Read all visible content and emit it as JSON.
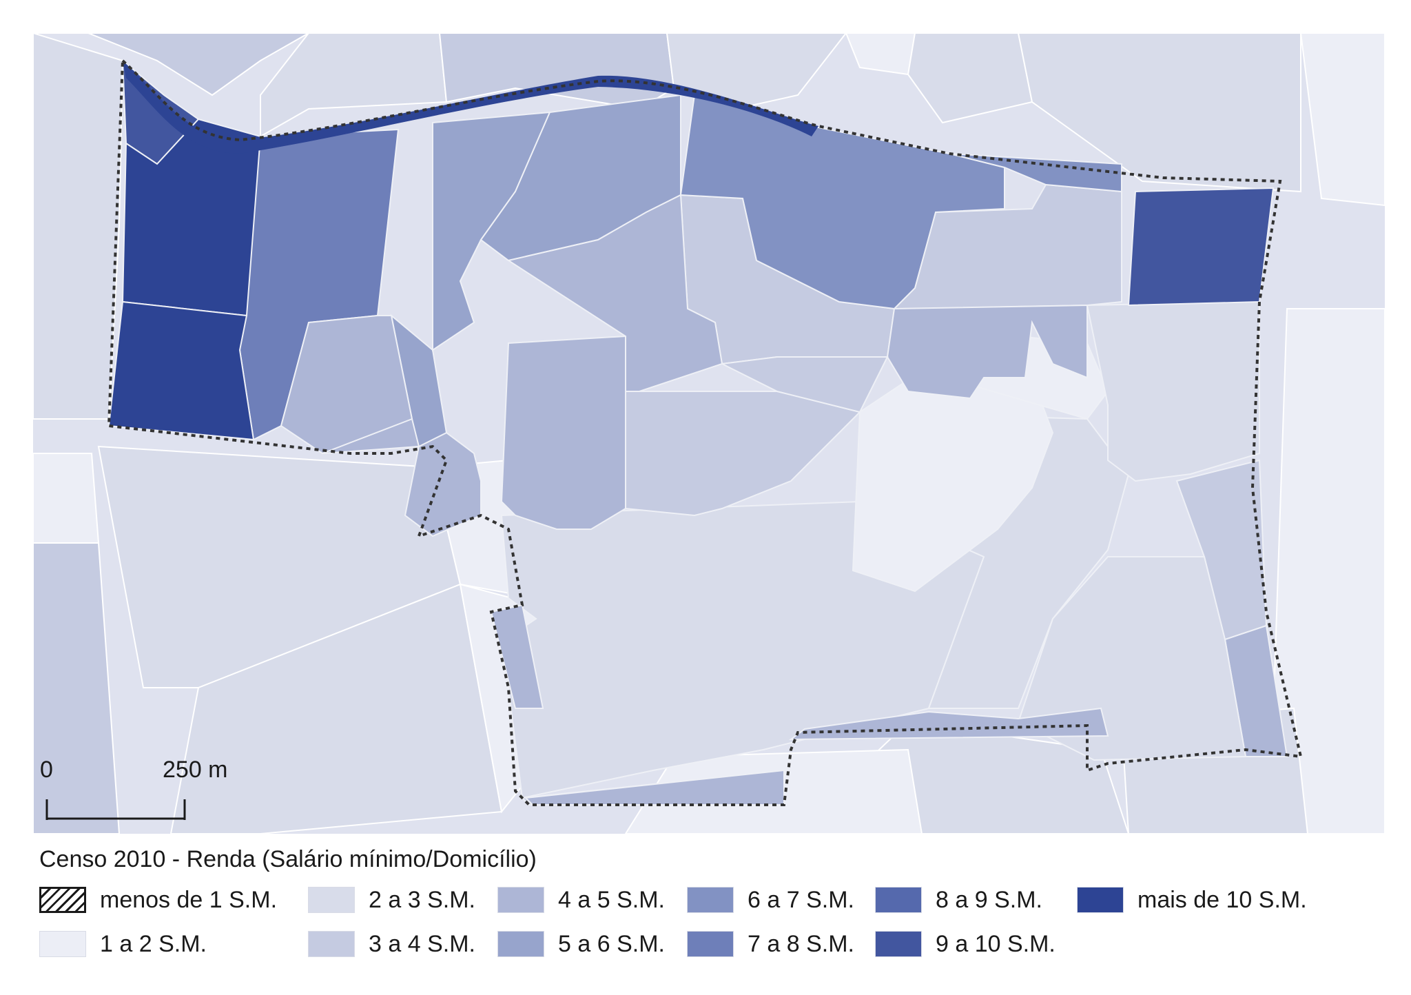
{
  "map": {
    "scale": {
      "start_label": "0",
      "end_label": "250 m"
    },
    "class_colors": {
      "c1": "#eceef6",
      "c2": "#d8dcea",
      "c3": "#c5cbe1",
      "c4": "#adb6d6",
      "c5": "#97a4cc",
      "c6": "#8292c3",
      "c7": "#6e7fb9",
      "c8": "#5569ad",
      "c9": "#42569f",
      "c10": "#2d4494"
    },
    "boundary_color": "#333333"
  },
  "legend": {
    "title": "Censo 2010 - Renda (Salário mínimo/Domicílio)",
    "items": [
      {
        "label": "menos de 1 S.M.",
        "color": "hatch"
      },
      {
        "label": "1 a 2 S.M.",
        "color": "#eceef6"
      },
      {
        "label": "2 a 3 S.M.",
        "color": "#d8dcea"
      },
      {
        "label": "3 a 4 S.M.",
        "color": "#c5cbe1"
      },
      {
        "label": "4 a 5 S.M.",
        "color": "#adb6d6"
      },
      {
        "label": "5 a 6 S.M.",
        "color": "#97a4cc"
      },
      {
        "label": "6 a 7 S.M.",
        "color": "#8292c3"
      },
      {
        "label": "7 a 8 S.M.",
        "color": "#6e7fb9"
      },
      {
        "label": "8 a 9 S.M.",
        "color": "#5569ad"
      },
      {
        "label": "9 a 10 S.M.",
        "color": "#42569f"
      },
      {
        "label": "mais de 10 S.M.",
        "color": "#2d4494"
      }
    ]
  }
}
